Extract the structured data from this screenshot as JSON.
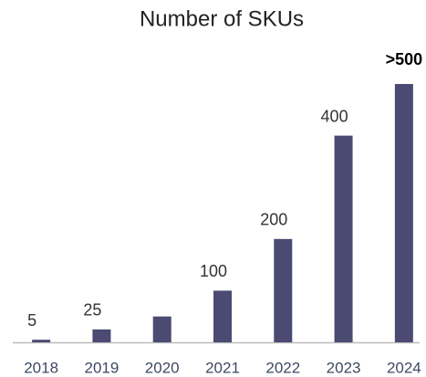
{
  "chart_data": {
    "type": "bar",
    "title": "Number of SKUs",
    "categories": [
      "2018",
      "2019",
      "2020",
      "2021",
      "2022",
      "2023",
      "2024"
    ],
    "values": [
      5,
      25,
      50,
      100,
      200,
      400,
      500
    ],
    "value_labels": [
      "5",
      "25",
      null,
      "100",
      "200",
      "400",
      ">500"
    ],
    "highlight": 6,
    "color": "#4a4a72",
    "ylim": [
      0,
      500
    ]
  }
}
